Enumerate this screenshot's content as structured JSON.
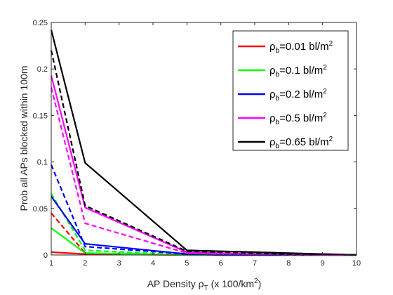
{
  "chart_data": {
    "type": "line",
    "title": "",
    "xlabel": {
      "main": "AP Density ",
      "rho": "ρ",
      "sub": "T",
      "rest": " (x 100/km",
      "sup": "2",
      "end": ")"
    },
    "ylabel": "Prob all APs blocked within 100m",
    "x": [
      1,
      2,
      5,
      6,
      7,
      8,
      9,
      10
    ],
    "xlim": [
      1,
      10
    ],
    "ylim": [
      0,
      0.25
    ],
    "xticks": [
      "1",
      "2",
      "3",
      "4",
      "5",
      "6",
      "7",
      "8",
      "9",
      "10"
    ],
    "yticks": [
      "0",
      "0.05",
      "0.1",
      "0.15",
      "0.2",
      "0.25"
    ],
    "grid": false,
    "legend_position": "top-right",
    "legend": [
      {
        "color": "#ff0000",
        "pre": "ρ",
        "sub": "b",
        "text": "=0.01 bl/m",
        "sup": "2"
      },
      {
        "color": "#00ff00",
        "pre": "ρ",
        "sub": "b",
        "text": "=0.1 bl/m",
        "sup": "2"
      },
      {
        "color": "#0000ff",
        "pre": "ρ",
        "sub": "b",
        "text": "=0.2 bl/m",
        "sup": "2"
      },
      {
        "color": "#ff00ff",
        "pre": "ρ",
        "sub": "b",
        "text": "=0.5 bl/m",
        "sup": "2"
      },
      {
        "color": "#000000",
        "pre": "ρ",
        "sub": "b",
        "text": "=0.65 bl/m",
        "sup": "2"
      }
    ],
    "series": [
      {
        "color": "#ff0000",
        "style": "solid",
        "values": [
          0.003,
          0.001,
          0.0,
          0.0,
          0.0,
          0.0,
          0.0,
          0.0
        ]
      },
      {
        "color": "#ff0000",
        "style": "dashed",
        "values": [
          0.045,
          0.002,
          0.0,
          0.0,
          0.0,
          0.0,
          0.0,
          0.0
        ]
      },
      {
        "color": "#00ff00",
        "style": "solid",
        "values": [
          0.029,
          0.002,
          0.0,
          0.0,
          0.0,
          0.0,
          0.0,
          0.0
        ]
      },
      {
        "color": "#00ff00",
        "style": "dashed",
        "values": [
          0.066,
          0.005,
          0.0,
          0.0,
          0.0,
          0.0,
          0.0,
          0.0
        ]
      },
      {
        "color": "#0000ff",
        "style": "solid",
        "values": [
          0.063,
          0.012,
          0.001,
          0.0,
          0.0,
          0.0,
          0.0,
          0.0
        ]
      },
      {
        "color": "#0000ff",
        "style": "dashed",
        "values": [
          0.097,
          0.009,
          0.001,
          0.0,
          0.0,
          0.0,
          0.0,
          0.0
        ]
      },
      {
        "color": "#ff00ff",
        "style": "solid",
        "values": [
          0.193,
          0.051,
          0.003,
          0.002,
          0.001,
          0.001,
          0.0,
          0.0
        ]
      },
      {
        "color": "#ff00ff",
        "style": "dashed",
        "values": [
          0.18,
          0.034,
          0.002,
          0.001,
          0.001,
          0.0,
          0.0,
          0.0
        ]
      },
      {
        "color": "#000000",
        "style": "solid",
        "values": [
          0.242,
          0.099,
          0.005,
          0.004,
          0.003,
          0.002,
          0.001,
          0.0
        ]
      },
      {
        "color": "#000000",
        "style": "dashed",
        "values": [
          0.22,
          0.053,
          0.004,
          0.003,
          0.002,
          0.001,
          0.001,
          0.0
        ]
      }
    ]
  }
}
